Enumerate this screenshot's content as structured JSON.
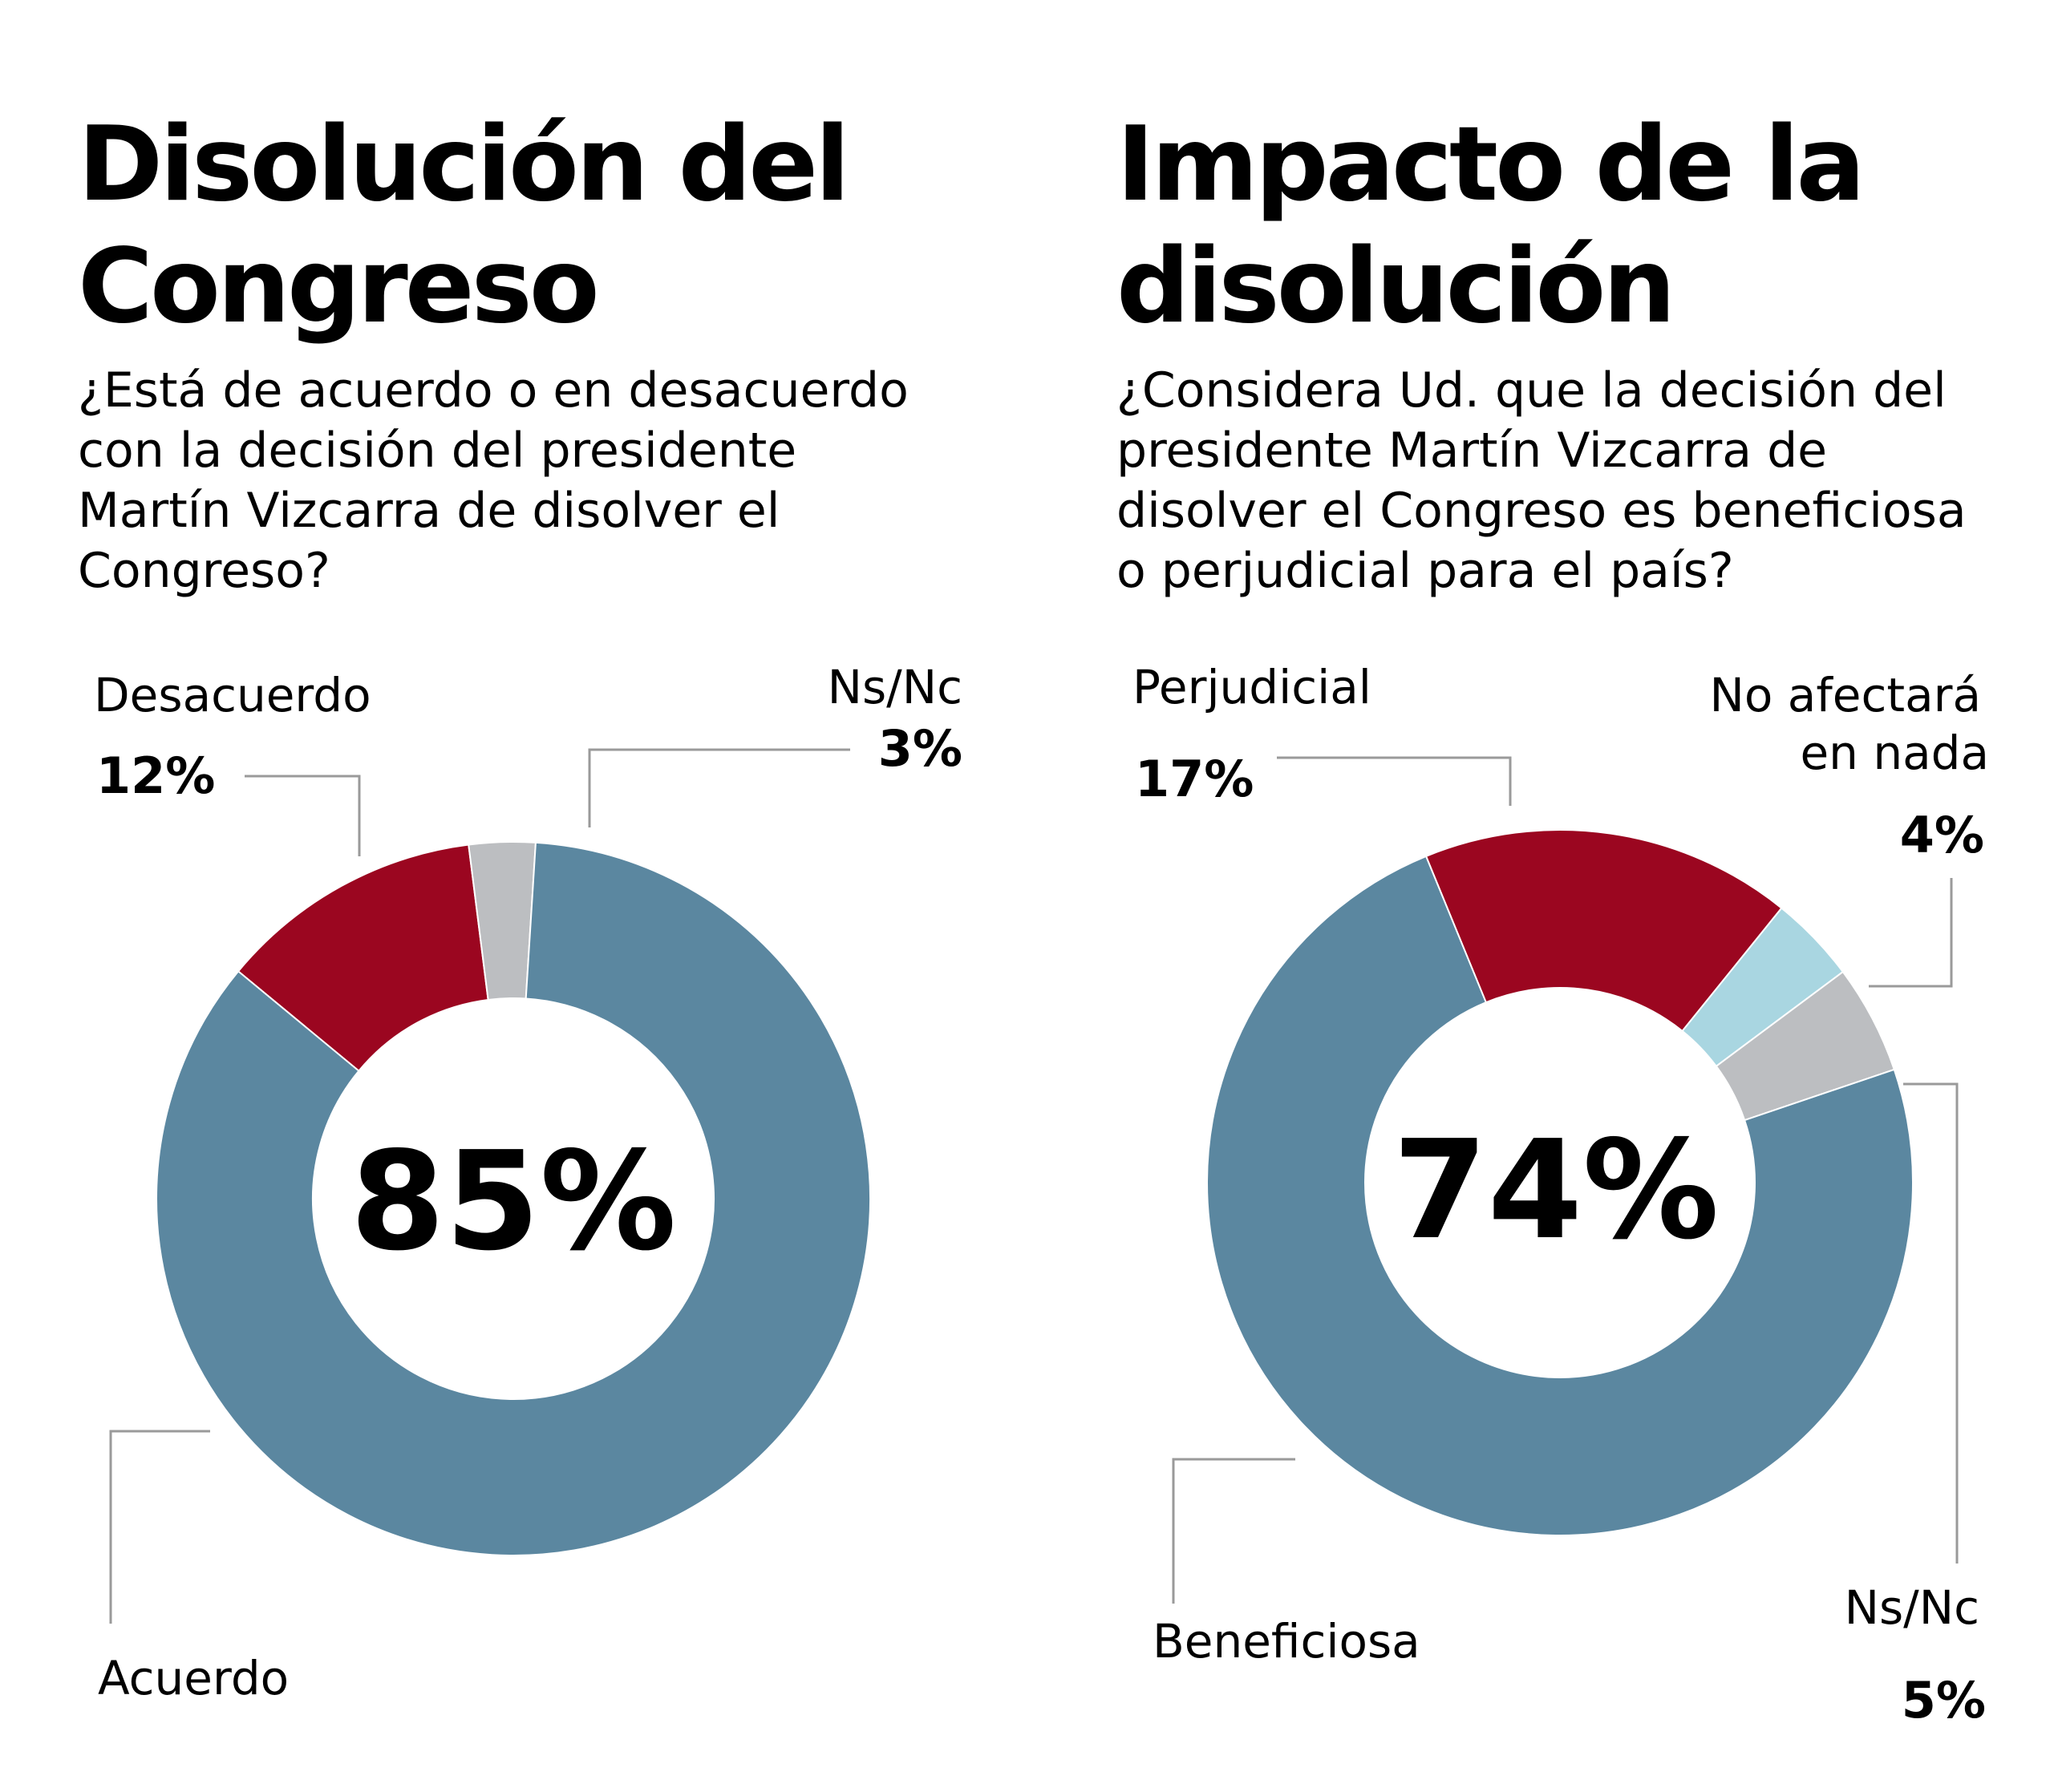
{
  "colors": {
    "blue": "#5b87a0",
    "red": "#9b0620",
    "gray": "#bcbec1",
    "lightblue": "#a9d6e1",
    "leader": "#9a9a9a",
    "text": "#000000"
  },
  "chart_data": [
    {
      "type": "pie",
      "title": [
        "Disolución del",
        "Congreso"
      ],
      "question": [
        "¿Está de acuerdo o en desacuerdo",
        "con la decisión del presidente",
        "Martín Vizcarra de disolver el",
        "Congreso?"
      ],
      "center_label": "85%",
      "slices": [
        {
          "name": "Acuerdo",
          "value": 85,
          "color": "blue",
          "label": "Acuerdo",
          "pct": ""
        },
        {
          "name": "Desacuerdo",
          "value": 12,
          "color": "red",
          "label": "Desacuerdo",
          "pct": "12%"
        },
        {
          "name": "Ns/Nc",
          "value": 3,
          "color": "gray",
          "label": "Ns/Nc",
          "pct": "3%"
        }
      ]
    },
    {
      "type": "pie",
      "title": [
        "Impacto de la",
        "disolución"
      ],
      "question": [
        "¿Considera Ud. que la decisión del",
        "presidente Martín Vizcarra de",
        "disolver el Congreso es beneficiosa",
        "o perjudicial para el país?"
      ],
      "center_label": "74%",
      "slices": [
        {
          "name": "Beneficiosa",
          "value": 74,
          "color": "blue",
          "label": "Beneficiosa",
          "pct": ""
        },
        {
          "name": "Perjudicial",
          "value": 17,
          "color": "red",
          "label": "Perjudicial",
          "pct": "17%"
        },
        {
          "name": "No afectará en nada",
          "value": 4,
          "color": "lightblue",
          "label": [
            "No afectará",
            "en nada"
          ],
          "pct": "4%"
        },
        {
          "name": "Ns/Nc",
          "value": 5,
          "color": "gray",
          "label": "Ns/Nc",
          "pct": "5%"
        }
      ]
    }
  ]
}
